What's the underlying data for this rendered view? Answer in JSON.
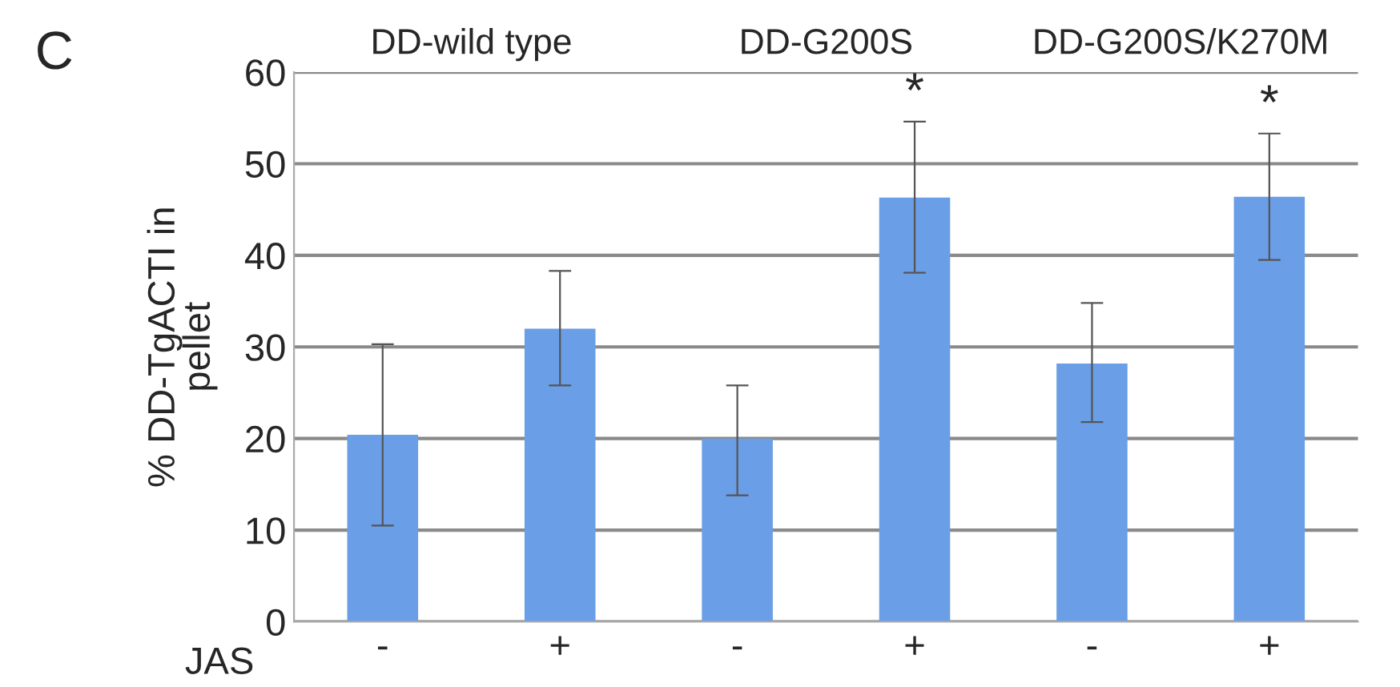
{
  "chart_data": {
    "type": "bar",
    "categories": [
      "-",
      "+",
      "-",
      "+",
      "-",
      "+"
    ],
    "values": [
      20.4,
      32.0,
      20.0,
      46.3,
      28.2,
      46.4
    ],
    "errors": [
      [
        10.5,
        30.3
      ],
      [
        25.8,
        38.3
      ],
      [
        13.8,
        25.8
      ],
      [
        38.1,
        54.6
      ],
      [
        21.8,
        34.8
      ],
      [
        39.5,
        53.3
      ]
    ],
    "value_labels": [
      null,
      null,
      null,
      "*",
      null,
      "*"
    ],
    "color": "#6a9ee6",
    "xlabel": "JAS",
    "ylabel": "% DD-TgACTI in\npellet",
    "annotations": [
      "C",
      "DD-wild type",
      "DD-G200S",
      "DD-G200S/K270M"
    ],
    "ylim": [
      0,
      60
    ],
    "yticks": [
      0,
      10,
      20,
      30,
      40,
      50,
      60
    ],
    "grid": "y"
  }
}
